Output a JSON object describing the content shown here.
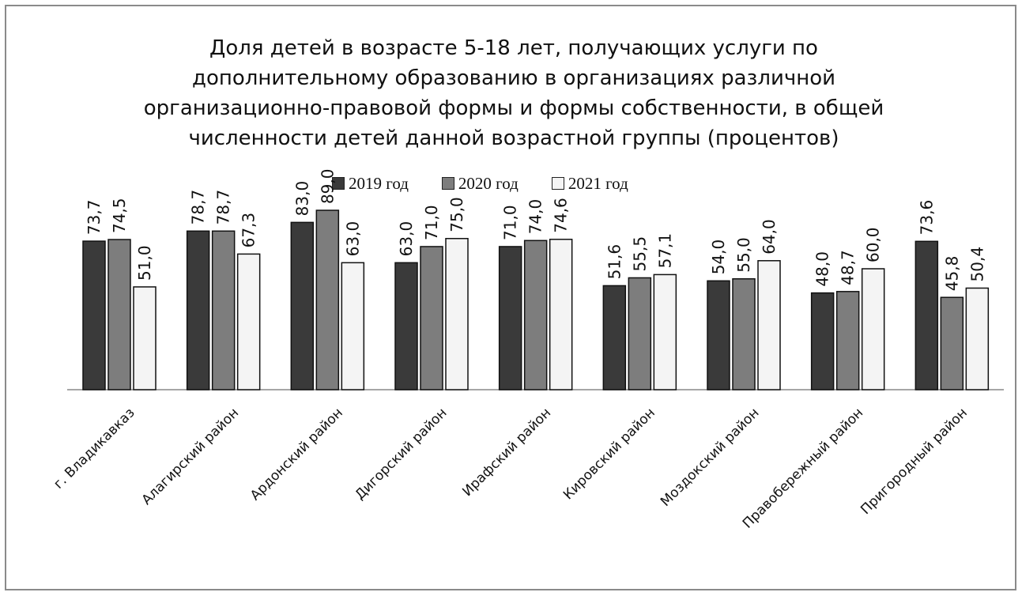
{
  "chart_data": {
    "type": "bar",
    "title_lines": [
      "Доля детей в возрасте 5-18 лет, получающих услуги по",
      "дополнительному образованию в организациях различной",
      "организационно-правовой формы и формы собственности, в общей",
      "численности детей данной возрастной группы (процентов)"
    ],
    "categories": [
      "г. Владикавказ",
      "Алагирский район",
      "Ардонский район",
      "Дигорский район",
      "Ирафский район",
      "Кировский район",
      "Моздокский район",
      "Правобережный район",
      "Пригородный район"
    ],
    "series": [
      {
        "name": "2019 год",
        "color": "#3a3a3a",
        "values": [
          73.7,
          78.7,
          83.0,
          63.0,
          71.0,
          51.6,
          54.0,
          48.0,
          73.6
        ],
        "labels": [
          "73,7",
          "78,7",
          "83,0",
          "63,0",
          "71,0",
          "51,6",
          "54,0",
          "48,0",
          "73,6"
        ]
      },
      {
        "name": "2020 год",
        "color": "#7d7d7d",
        "values": [
          74.5,
          78.7,
          89.0,
          71.0,
          74.0,
          55.5,
          55.0,
          48.7,
          45.8
        ],
        "labels": [
          "74,5",
          "78,7",
          "89,0",
          "71,0",
          "74,0",
          "55,5",
          "55,0",
          "48,7",
          "45,8"
        ]
      },
      {
        "name": "2021 год",
        "color": "#f4f4f4",
        "values": [
          51.0,
          67.3,
          63.0,
          75.0,
          74.6,
          57.1,
          64.0,
          60.0,
          50.4
        ],
        "labels": [
          "51,0",
          "67,3",
          "63,0",
          "75,0",
          "74,6",
          "57,1",
          "64,0",
          "60,0",
          "50,4"
        ]
      }
    ],
    "ylim": [
      0,
      100
    ],
    "grid": false,
    "legend_position": "top-center"
  }
}
